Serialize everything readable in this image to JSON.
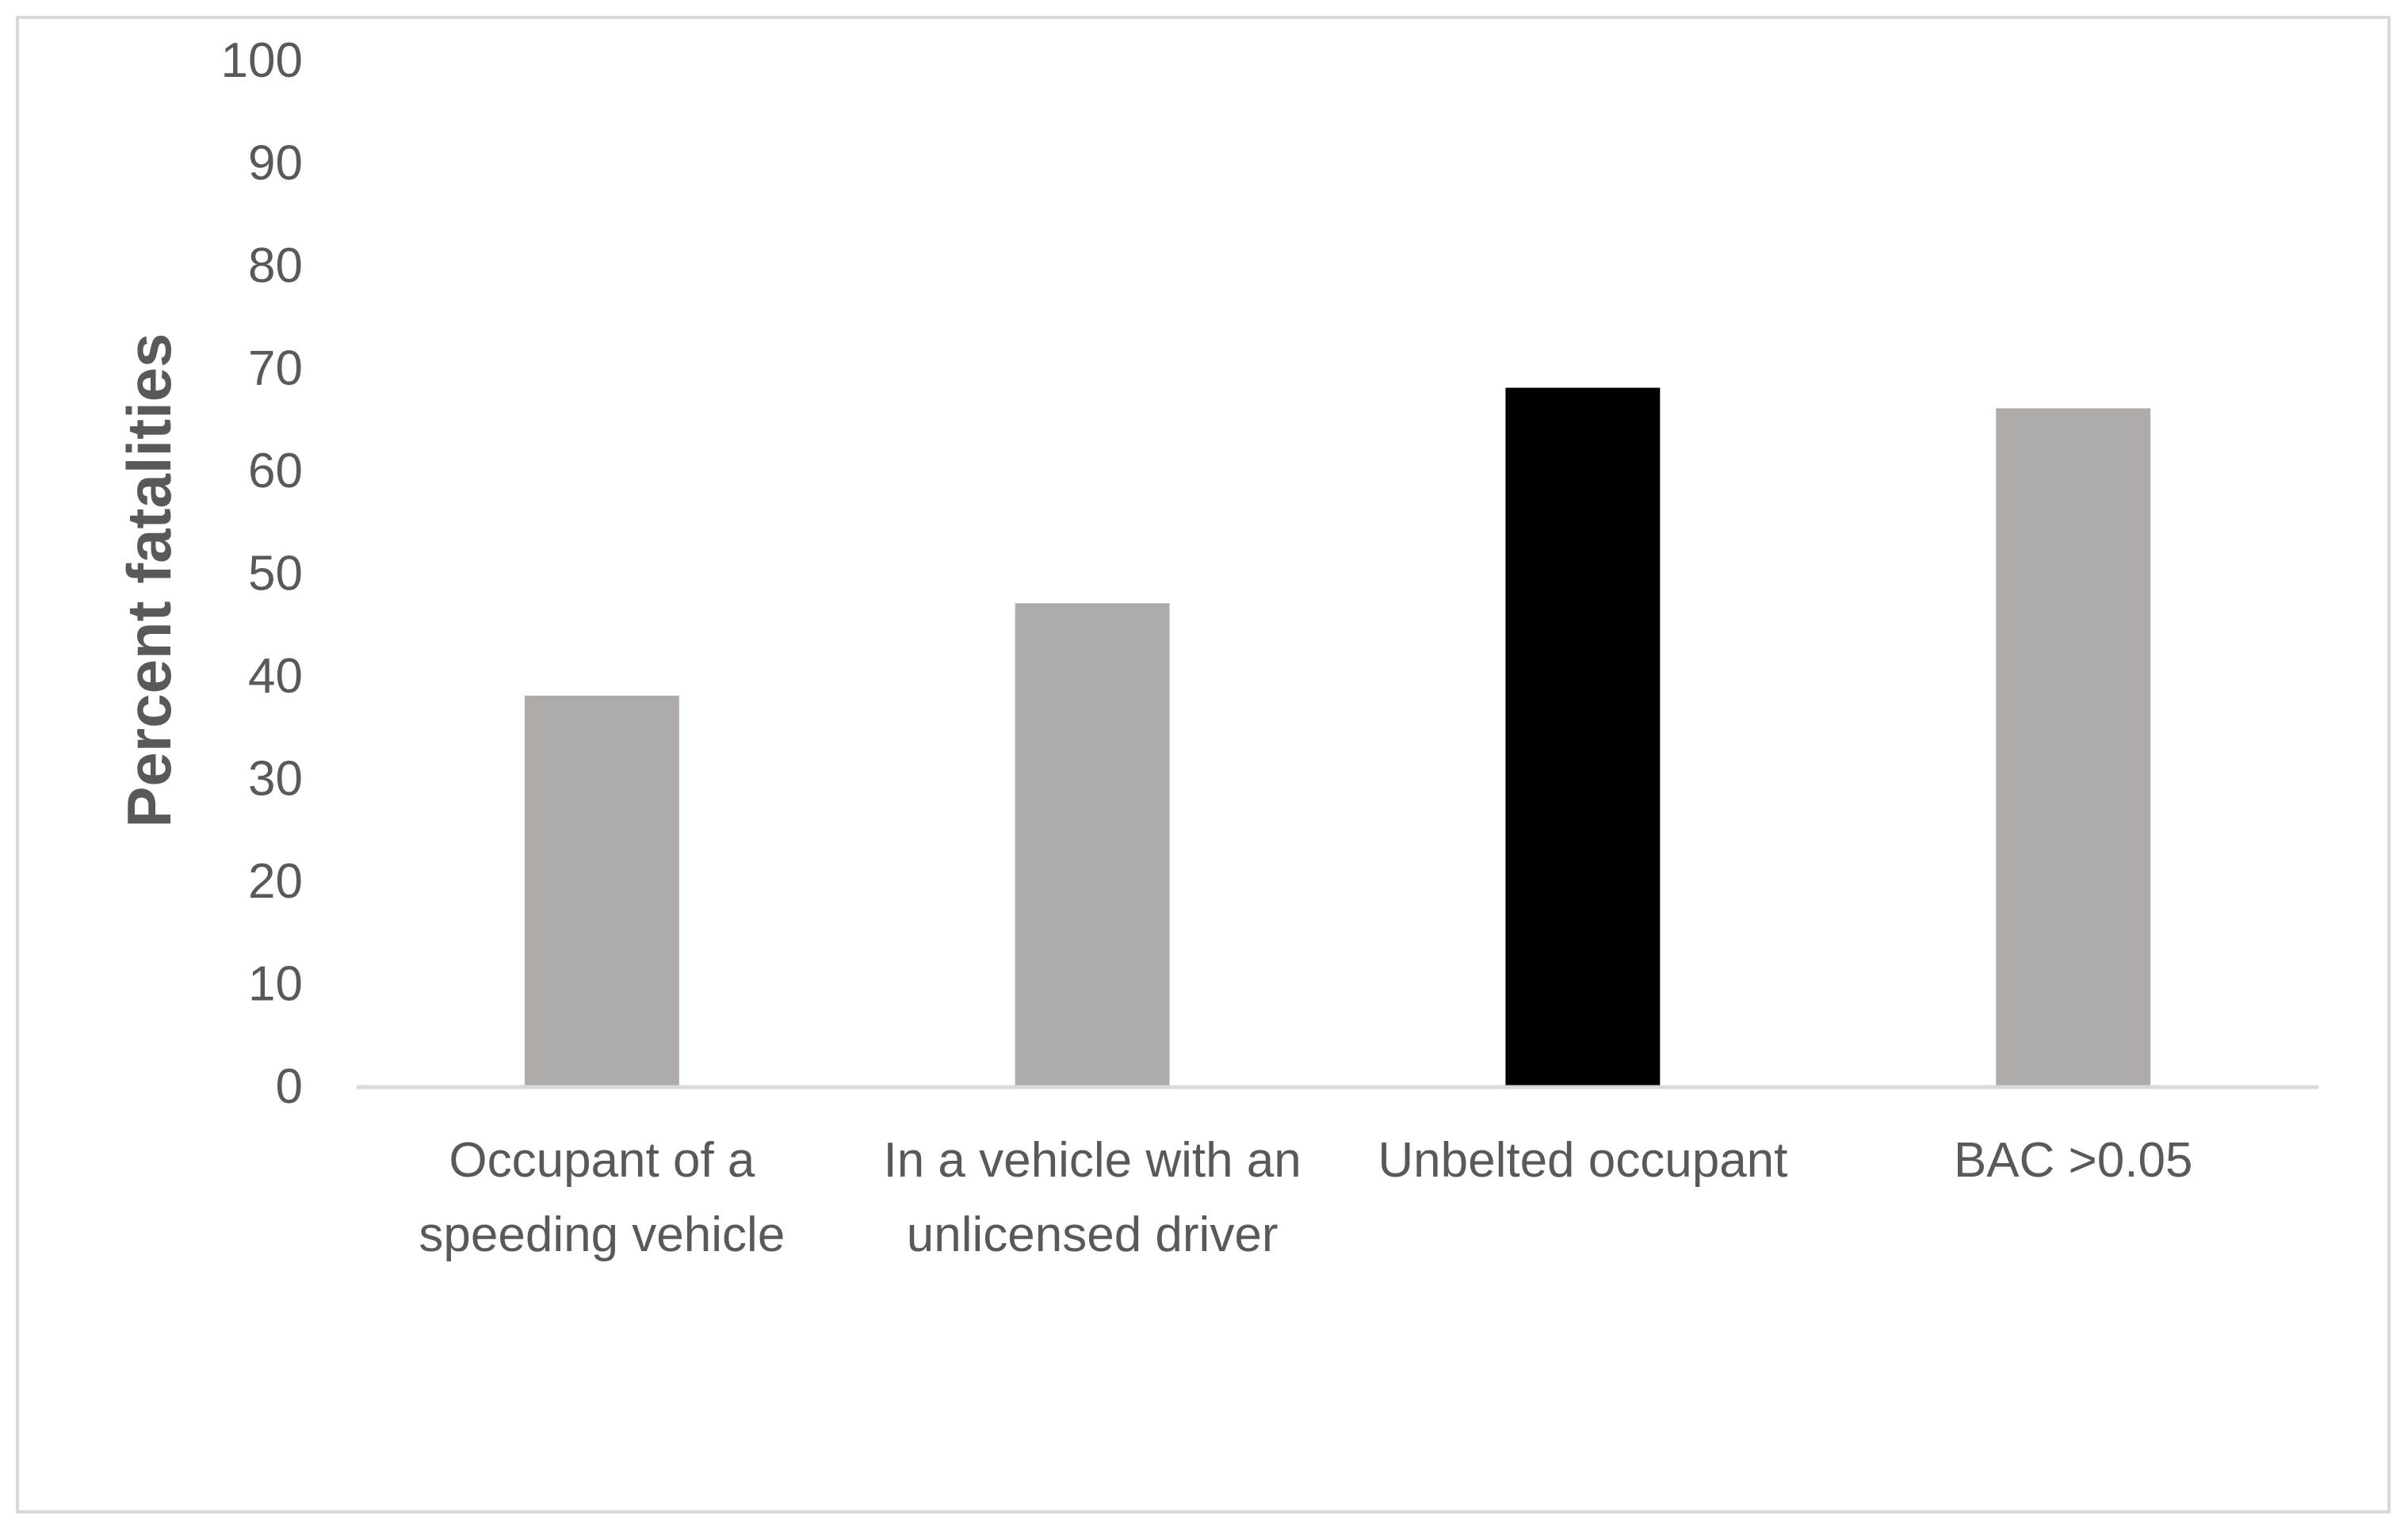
{
  "chart_data": {
    "type": "bar",
    "title": "",
    "xlabel": "",
    "ylabel": "Percent fatalities",
    "ylim": [
      0,
      100
    ],
    "yticks": [
      0,
      10,
      20,
      30,
      40,
      50,
      60,
      70,
      80,
      90,
      100
    ],
    "grid": false,
    "legend": "none",
    "categories": [
      [
        "Occupant of a",
        "speeding vehicle"
      ],
      [
        "In a vehicle with an",
        "unlicensed driver"
      ],
      [
        "Unbelted occupant"
      ],
      [
        "BAC >0.05"
      ]
    ],
    "values": [
      38,
      47,
      68,
      66
    ],
    "bar_colors": [
      "#aeaba9",
      "#aeaba9",
      "#000000",
      "#aeaba9"
    ],
    "axis_color": "#d9d9d9",
    "text_color": "#595959"
  }
}
